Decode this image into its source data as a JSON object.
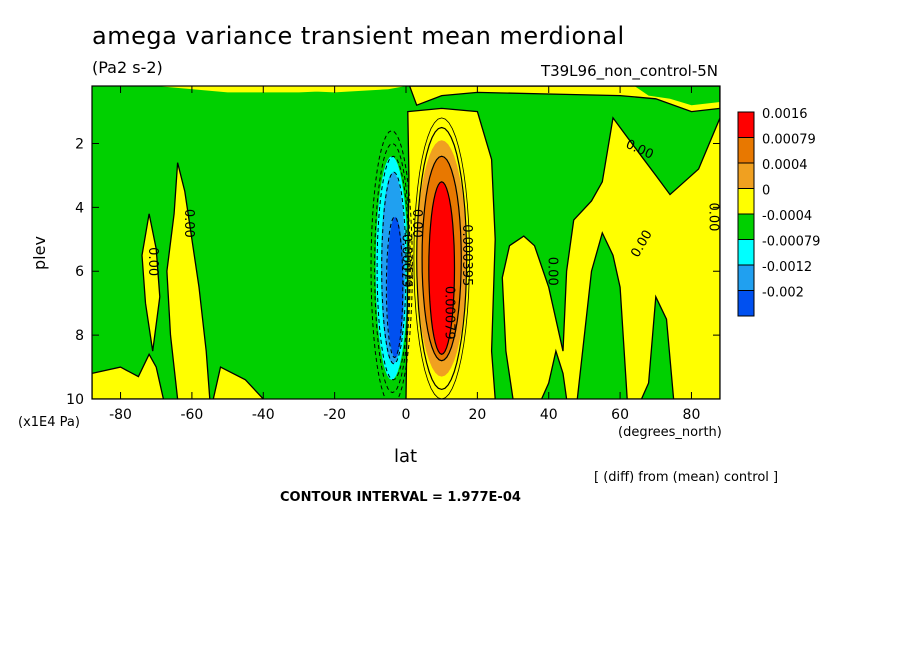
{
  "header": {
    "title": "amega variance transient mean merdional",
    "units": "(Pa2 s-2)",
    "run_name": "T39L96_non_control-5N"
  },
  "footer": {
    "diff_note": "[ (diff) from (mean) control ]",
    "contour_interval": "CONTOUR INTERVAL = 1.977E-04"
  },
  "chart_data": {
    "type": "heatmap",
    "title": "amega variance transient mean merdional",
    "subtitle": "(Pa2 s-2)",
    "xlabel": "lat",
    "ylabel": "plev",
    "x_units": "(degrees_north)",
    "y_units": "(x1E4 Pa)",
    "xlim": [
      -88,
      88
    ],
    "ylim": [
      10,
      0.2
    ],
    "x_ticks": [
      -80,
      -60,
      -40,
      -20,
      0,
      20,
      40,
      60,
      80
    ],
    "x_tick_labels": [
      "-80",
      "-60",
      "-40",
      "-20",
      "0",
      "20",
      "40",
      "60",
      "80"
    ],
    "y_ticks": [
      2,
      4,
      6,
      8,
      10
    ],
    "y_tick_labels": [
      "2",
      "4",
      "6",
      "8",
      "10"
    ],
    "grid": false,
    "legend_placement": "right",
    "colorbar": [
      {
        "label": "0.0016",
        "color": "#ff0000"
      },
      {
        "label": "0.00079",
        "color": "#e87800"
      },
      {
        "label": "0.0004",
        "color": "#f0a020"
      },
      {
        "label": "0",
        "color": "#ffff00"
      },
      {
        "label": "-0.0004",
        "color": "#00d000"
      },
      {
        "label": "-0.00079",
        "color": "#00ffff"
      },
      {
        "label": "-0.0012",
        "color": "#20a0f0"
      },
      {
        "label": "-0.002",
        "color": "#0050f0"
      }
    ],
    "contour_labels": [
      {
        "text": "0.00",
        "x": 65,
        "y": 2.3,
        "angle": 25
      },
      {
        "text": "0.00",
        "x": -62,
        "y": 4.5,
        "angle": 90
      },
      {
        "text": "0.00",
        "x": -72,
        "y": 5.7,
        "angle": 90
      },
      {
        "text": "0.00",
        "x": 40,
        "y": 6.0,
        "angle": 90
      },
      {
        "text": "0.00",
        "x": 67,
        "y": 5.2,
        "angle": -60
      },
      {
        "text": "0.00",
        "x": 85,
        "y": 4.3,
        "angle": 90
      },
      {
        "text": "0.00",
        "x": 2,
        "y": 4.5,
        "angle": 90
      },
      {
        "text": "0.00079",
        "x": 11,
        "y": 7.3,
        "angle": 90
      },
      {
        "text": "0.000395",
        "x": 16,
        "y": 5.5,
        "angle": 90
      },
      {
        "text": "-0.00079",
        "x": -1,
        "y": 5.6,
        "angle": 90
      }
    ],
    "colors": {
      "positive_high": "#ff0000",
      "positive_mid": "#e87800",
      "positive_low": "#f0a020",
      "zero_pos": "#ffff00",
      "zero_neg": "#00d000",
      "negative_low": "#00ffff",
      "negative_mid": "#20a0f0",
      "negative_high": "#0050f0"
    }
  }
}
